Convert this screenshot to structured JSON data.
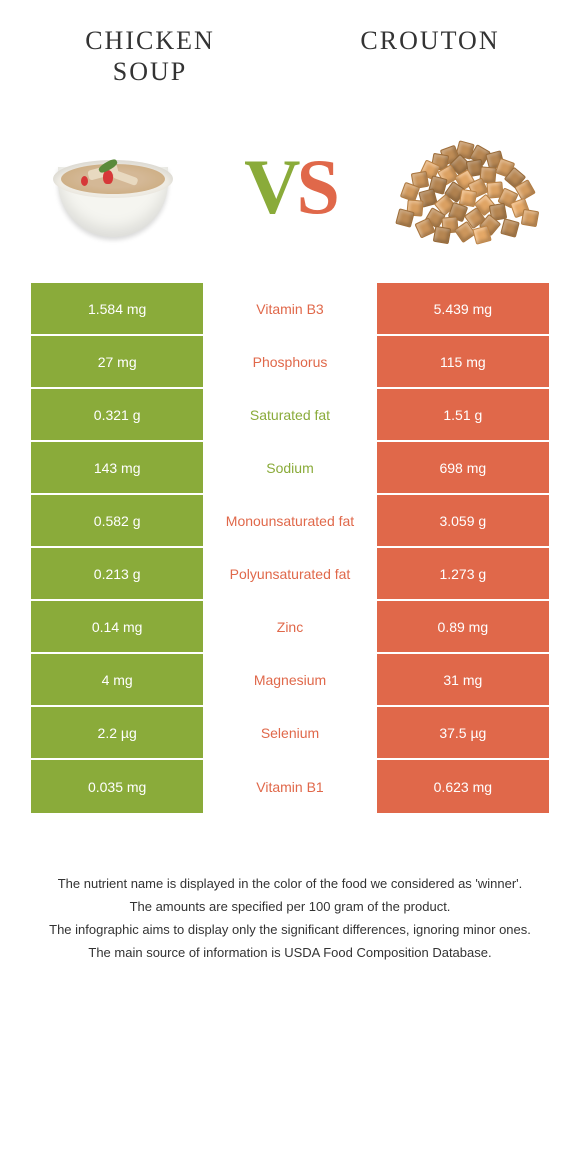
{
  "colors": {
    "green": "#8aab3a",
    "orange": "#e0684a",
    "white": "#ffffff"
  },
  "food_left": {
    "title": "CHICKEN SOUP"
  },
  "food_right": {
    "title": "CROUTON"
  },
  "vs": {
    "v": "V",
    "s": "S"
  },
  "rows": [
    {
      "left": "1.584 mg",
      "label": "Vitamin B3",
      "right": "5.439 mg",
      "winner": "right"
    },
    {
      "left": "27 mg",
      "label": "Phosphorus",
      "right": "115 mg",
      "winner": "right"
    },
    {
      "left": "0.321 g",
      "label": "Saturated fat",
      "right": "1.51 g",
      "winner": "left"
    },
    {
      "left": "143 mg",
      "label": "Sodium",
      "right": "698 mg",
      "winner": "left"
    },
    {
      "left": "0.582 g",
      "label": "Monounsaturated fat",
      "right": "3.059 g",
      "winner": "right"
    },
    {
      "left": "0.213 g",
      "label": "Polyunsaturated fat",
      "right": "1.273 g",
      "winner": "right"
    },
    {
      "left": "0.14 mg",
      "label": "Zinc",
      "right": "0.89 mg",
      "winner": "right"
    },
    {
      "left": "4 mg",
      "label": "Magnesium",
      "right": "31 mg",
      "winner": "right"
    },
    {
      "left": "2.2 µg",
      "label": "Selenium",
      "right": "37.5 µg",
      "winner": "right"
    },
    {
      "left": "0.035 mg",
      "label": "Vitamin B1",
      "right": "0.623 mg",
      "winner": "right"
    }
  ],
  "footer": {
    "line1": "The nutrient name is displayed in the color of the food we considered as 'winner'.",
    "line2": "The amounts are specified per 100 gram of the product.",
    "line3": "The infographic aims to display only the significant differences, ignoring minor ones.",
    "line4": "The main source of information is USDA Food Composition Database."
  }
}
